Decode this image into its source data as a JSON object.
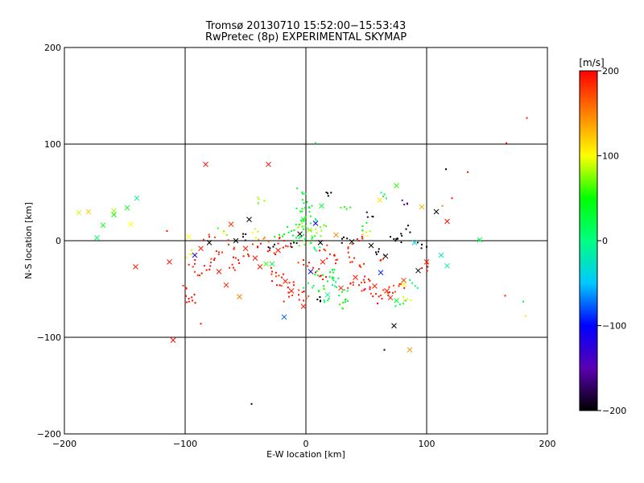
{
  "chart_data": {
    "type": "scatter",
    "title": "Tromsø 20130710 15:52:00−15:53:43",
    "subtitle": "RwPretec (8p) EXPERIMENTAL SKYMAP",
    "xlabel": "E-W location [km]",
    "ylabel": "N-S location [km]",
    "xlim": [
      -200,
      200
    ],
    "ylim": [
      -200,
      200
    ],
    "x_ticks": [
      -200,
      -100,
      0,
      100,
      200
    ],
    "y_ticks": [
      -200,
      -100,
      0,
      100,
      200
    ],
    "x_tick_labels": [
      "−200",
      "−100",
      "0",
      "100",
      "200"
    ],
    "y_tick_labels": [
      "−200",
      "−100",
      "0",
      "100",
      "200"
    ],
    "grid": true,
    "colorbar": {
      "label": "[m/s]",
      "range": [
        -200,
        200
      ],
      "ticks": [
        200,
        100,
        0,
        -100,
        -200
      ],
      "tick_labels": [
        "200",
        "100",
        "0",
        "−100",
        "−200"
      ],
      "colors": [
        "#000000",
        "#5a00b4",
        "#0000ff",
        "#00c8ff",
        "#00ff80",
        "#00ff00",
        "#ffff00",
        "#ff8000",
        "#ff0000"
      ]
    },
    "crosses": [
      {
        "x": -188,
        "y": 29,
        "v": 90
      },
      {
        "x": -180,
        "y": 30,
        "v": 120
      },
      {
        "x": -173,
        "y": 3,
        "v": 10
      },
      {
        "x": -168,
        "y": 16,
        "v": 40
      },
      {
        "x": -159,
        "y": 27,
        "v": 50
      },
      {
        "x": -159,
        "y": 31,
        "v": 80
      },
      {
        "x": -148,
        "y": 34,
        "v": 40
      },
      {
        "x": -145,
        "y": 17,
        "v": 100
      },
      {
        "x": -140,
        "y": 44,
        "v": -10
      },
      {
        "x": -141,
        "y": -27,
        "v": 190
      },
      {
        "x": -113,
        "y": -22,
        "v": 190
      },
      {
        "x": -110,
        "y": -103,
        "v": 195
      },
      {
        "x": -97,
        "y": 4,
        "v": 100
      },
      {
        "x": -92,
        "y": -15,
        "v": -120
      },
      {
        "x": -83,
        "y": 79,
        "v": 195
      },
      {
        "x": -87,
        "y": -8,
        "v": 190
      },
      {
        "x": -80,
        "y": -2,
        "v": -200
      },
      {
        "x": -72,
        "y": -32,
        "v": 190
      },
      {
        "x": -66,
        "y": -46,
        "v": 190
      },
      {
        "x": -62,
        "y": 17,
        "v": 180
      },
      {
        "x": -58,
        "y": 0,
        "v": -200
      },
      {
        "x": -55,
        "y": -58,
        "v": 150
      },
      {
        "x": -47,
        "y": 22,
        "v": -200
      },
      {
        "x": -42,
        "y": -18,
        "v": 190
      },
      {
        "x": -38,
        "y": -27,
        "v": 190
      },
      {
        "x": -31,
        "y": 79,
        "v": 195
      },
      {
        "x": -28,
        "y": -24,
        "v": 30
      },
      {
        "x": -23,
        "y": -10,
        "v": 190
      },
      {
        "x": -17,
        "y": -42,
        "v": 190
      },
      {
        "x": -12,
        "y": -52,
        "v": 190
      },
      {
        "x": -18,
        "y": -79,
        "v": -80
      },
      {
        "x": -5,
        "y": 7,
        "v": -200
      },
      {
        "x": -2,
        "y": -68,
        "v": 190
      },
      {
        "x": 3,
        "y": 11,
        "v": 80
      },
      {
        "x": 8,
        "y": 18,
        "v": -100
      },
      {
        "x": 12,
        "y": -2,
        "v": -200
      },
      {
        "x": 14,
        "y": -22,
        "v": 190
      },
      {
        "x": 18,
        "y": -56,
        "v": 0
      },
      {
        "x": 25,
        "y": 6,
        "v": 150
      },
      {
        "x": 29,
        "y": -49,
        "v": 190
      },
      {
        "x": 38,
        "y": -1,
        "v": -200
      },
      {
        "x": 41,
        "y": -38,
        "v": 190
      },
      {
        "x": 54,
        "y": -5,
        "v": -200
      },
      {
        "x": 57,
        "y": -47,
        "v": 190
      },
      {
        "x": 61,
        "y": 42,
        "v": 110
      },
      {
        "x": 62,
        "y": -33,
        "v": -90
      },
      {
        "x": 66,
        "y": -16,
        "v": -200
      },
      {
        "x": 67,
        "y": -52,
        "v": 190
      },
      {
        "x": 70,
        "y": -59,
        "v": 190
      },
      {
        "x": 73,
        "y": -88,
        "v": -200
      },
      {
        "x": 75,
        "y": -62,
        "v": 30
      },
      {
        "x": 81,
        "y": -45,
        "v": 100
      },
      {
        "x": 81,
        "y": -41,
        "v": 180
      },
      {
        "x": 86,
        "y": -113,
        "v": 140
      },
      {
        "x": 90,
        "y": -2,
        "v": -40
      },
      {
        "x": 93,
        "y": -31,
        "v": -200
      },
      {
        "x": 96,
        "y": 35,
        "v": 130
      },
      {
        "x": 100,
        "y": -22,
        "v": 190
      },
      {
        "x": 108,
        "y": 30,
        "v": -200
      },
      {
        "x": 117,
        "y": 20,
        "v": 195
      },
      {
        "x": 112,
        "y": -15,
        "v": -20
      },
      {
        "x": 117,
        "y": -26,
        "v": -10
      },
      {
        "x": 144,
        "y": 1,
        "v": 20
      },
      {
        "x": 75,
        "y": 57,
        "v": 60
      },
      {
        "x": 13,
        "y": 36,
        "v": 30
      },
      {
        "x": -2,
        "y": 22,
        "v": 30
      },
      {
        "x": -33,
        "y": -24,
        "v": 60
      },
      {
        "x": -50,
        "y": -8,
        "v": 190
      },
      {
        "x": 4,
        "y": -32,
        "v": -110
      }
    ],
    "dots": [
      {
        "x": 183,
        "y": 127,
        "v": 195
      },
      {
        "x": 166,
        "y": 101,
        "v": 195
      },
      {
        "x": 116,
        "y": 74,
        "v": -200
      },
      {
        "x": 134,
        "y": 71,
        "v": 195
      },
      {
        "x": 121,
        "y": 44,
        "v": 190
      },
      {
        "x": 113,
        "y": 36,
        "v": 150
      },
      {
        "x": 84,
        "y": 38,
        "v": -150
      },
      {
        "x": 65,
        "y": 48,
        "v": 20
      },
      {
        "x": 55,
        "y": 25,
        "v": -200
      },
      {
        "x": 32,
        "y": 35,
        "v": 60
      },
      {
        "x": -3,
        "y": 50,
        "v": 40
      },
      {
        "x": 17,
        "y": 50,
        "v": -200
      },
      {
        "x": 8,
        "y": 101,
        "v": 40
      },
      {
        "x": -39,
        "y": 43,
        "v": 80
      },
      {
        "x": -115,
        "y": 10,
        "v": 195
      },
      {
        "x": -99,
        "y": -49,
        "v": 195
      },
      {
        "x": -97,
        "y": -60,
        "v": 195
      },
      {
        "x": -94,
        "y": -62,
        "v": 195
      },
      {
        "x": -87,
        "y": -86,
        "v": 190
      },
      {
        "x": -45,
        "y": -169,
        "v": -200
      },
      {
        "x": 65,
        "y": -113,
        "v": -200
      },
      {
        "x": 165,
        "y": -57,
        "v": 195
      },
      {
        "x": 180,
        "y": -63,
        "v": 40
      },
      {
        "x": 182,
        "y": -78,
        "v": 110
      },
      {
        "x": 143,
        "y": 1,
        "v": 20
      },
      {
        "x": 101,
        "y": -27,
        "v": 190
      },
      {
        "x": 96,
        "y": -4,
        "v": -200
      },
      {
        "x": 83,
        "y": 12,
        "v": -200
      },
      {
        "x": 47,
        "y": 15,
        "v": 50
      },
      {
        "x": -2,
        "y": 6,
        "v": 20
      },
      {
        "x": 2,
        "y": 12,
        "v": 50
      },
      {
        "x": -4,
        "y": 21,
        "v": 30
      },
      {
        "x": 0,
        "y": 25,
        "v": 60
      },
      {
        "x": 3,
        "y": 30,
        "v": 20
      },
      {
        "x": -6,
        "y": 14,
        "v": 80
      },
      {
        "x": 5,
        "y": 2,
        "v": 30
      },
      {
        "x": -1,
        "y": -4,
        "v": 70
      },
      {
        "x": 7,
        "y": -7,
        "v": 20
      },
      {
        "x": -8,
        "y": 3,
        "v": 30
      },
      {
        "x": 9,
        "y": 8,
        "v": 80
      },
      {
        "x": -10,
        "y": -2,
        "v": -200
      },
      {
        "x": 1,
        "y": 40,
        "v": 30
      },
      {
        "x": -3,
        "y": 33,
        "v": 40
      },
      {
        "x": 4,
        "y": 18,
        "v": 10
      },
      {
        "x": -12,
        "y": 10,
        "v": 30
      },
      {
        "x": 12,
        "y": 14,
        "v": 70
      },
      {
        "x": -15,
        "y": -6,
        "v": 190
      },
      {
        "x": 15,
        "y": -9,
        "v": 190
      },
      {
        "x": 20,
        "y": -14,
        "v": 190
      },
      {
        "x": 25,
        "y": -20,
        "v": 190
      },
      {
        "x": 22,
        "y": -30,
        "v": 40
      },
      {
        "x": 27,
        "y": -39,
        "v": 20
      },
      {
        "x": 18,
        "y": -42,
        "v": 30
      },
      {
        "x": 24,
        "y": -47,
        "v": 10
      },
      {
        "x": 30,
        "y": -53,
        "v": 40
      },
      {
        "x": 15,
        "y": -50,
        "v": 50
      },
      {
        "x": 19,
        "y": -60,
        "v": 20
      },
      {
        "x": 33,
        "y": -61,
        "v": 30
      },
      {
        "x": 12,
        "y": -62,
        "v": -200
      },
      {
        "x": 28,
        "y": -66,
        "v": 60
      },
      {
        "x": 37,
        "y": -44,
        "v": 190
      },
      {
        "x": 44,
        "y": -46,
        "v": 190
      },
      {
        "x": 49,
        "y": -50,
        "v": 190
      },
      {
        "x": 52,
        "y": -40,
        "v": 190
      },
      {
        "x": 58,
        "y": -55,
        "v": 190
      },
      {
        "x": 63,
        "y": -60,
        "v": 190
      },
      {
        "x": 69,
        "y": -48,
        "v": 190
      },
      {
        "x": 72,
        "y": -54,
        "v": 190
      },
      {
        "x": 77,
        "y": -47,
        "v": 190
      },
      {
        "x": 78,
        "y": -66,
        "v": 20
      },
      {
        "x": 84,
        "y": -60,
        "v": 100
      },
      {
        "x": 88,
        "y": -44,
        "v": 10
      },
      {
        "x": 58,
        "y": -12,
        "v": -200
      },
      {
        "x": 62,
        "y": -20,
        "v": 190
      },
      {
        "x": 48,
        "y": -24,
        "v": 190
      },
      {
        "x": 40,
        "y": -18,
        "v": 190
      },
      {
        "x": 35,
        "y": -8,
        "v": 190
      },
      {
        "x": 30,
        "y": 2,
        "v": -200
      },
      {
        "x": 44,
        "y": 0,
        "v": 190
      },
      {
        "x": 51,
        "y": 5,
        "v": 100
      },
      {
        "x": 70,
        "y": 4,
        "v": -200
      },
      {
        "x": 76,
        "y": 2,
        "v": -200
      },
      {
        "x": -18,
        "y": 0,
        "v": 190
      },
      {
        "x": -22,
        "y": 6,
        "v": 50
      },
      {
        "x": -26,
        "y": -4,
        "v": -200
      },
      {
        "x": -30,
        "y": -10,
        "v": 190
      },
      {
        "x": -35,
        "y": 2,
        "v": 150
      },
      {
        "x": -40,
        "y": -6,
        "v": 190
      },
      {
        "x": -44,
        "y": 8,
        "v": 100
      },
      {
        "x": -48,
        "y": -14,
        "v": 190
      },
      {
        "x": -52,
        "y": 4,
        "v": -200
      },
      {
        "x": -56,
        "y": -20,
        "v": 190
      },
      {
        "x": -60,
        "y": -28,
        "v": 190
      },
      {
        "x": -64,
        "y": -4,
        "v": 190
      },
      {
        "x": -68,
        "y": 10,
        "v": 80
      },
      {
        "x": -72,
        "y": -12,
        "v": 190
      },
      {
        "x": -76,
        "y": -20,
        "v": 190
      },
      {
        "x": -80,
        "y": 4,
        "v": 190
      },
      {
        "x": -84,
        "y": -26,
        "v": 190
      },
      {
        "x": -88,
        "y": -36,
        "v": 190
      },
      {
        "x": -92,
        "y": -24,
        "v": 190
      },
      {
        "x": -96,
        "y": -14,
        "v": 100
      },
      {
        "x": -20,
        "y": -38,
        "v": 190
      },
      {
        "x": -24,
        "y": -46,
        "v": 190
      },
      {
        "x": -28,
        "y": -32,
        "v": 190
      },
      {
        "x": -10,
        "y": -46,
        "v": 190
      },
      {
        "x": -6,
        "y": -56,
        "v": 190
      },
      {
        "x": -14,
        "y": -58,
        "v": 190
      },
      {
        "x": -2,
        "y": -20,
        "v": 190
      },
      {
        "x": 6,
        "y": -28,
        "v": 190
      },
      {
        "x": 10,
        "y": -36,
        "v": 30
      },
      {
        "x": 2,
        "y": -44,
        "v": 20
      },
      {
        "x": 14,
        "y": -40,
        "v": 190
      },
      {
        "x": -2,
        "y": -62,
        "v": 190
      }
    ],
    "cluster_seed": 7
  }
}
